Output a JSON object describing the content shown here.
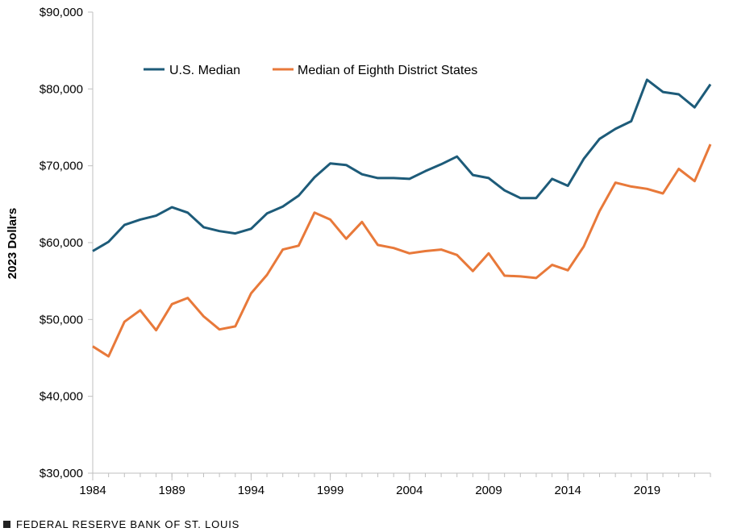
{
  "chart_data": {
    "type": "line",
    "title": "",
    "xlabel": "",
    "ylabel": "2023 Dollars",
    "ylim": [
      30000,
      90000
    ],
    "xlim": [
      1984,
      2023
    ],
    "y_ticks": [
      30000,
      40000,
      50000,
      60000,
      70000,
      80000,
      90000
    ],
    "y_tick_labels": [
      "$30,000",
      "$40,000",
      "$50,000",
      "$60,000",
      "$70,000",
      "$80,000",
      "$90,000"
    ],
    "x_ticks": [
      1984,
      1989,
      1994,
      1999,
      2004,
      2009,
      2014,
      2019
    ],
    "x_tick_labels": [
      "1984",
      "1989",
      "1994",
      "1999",
      "2004",
      "2009",
      "2014",
      "2019"
    ],
    "grid": false,
    "legend_position": "top-left",
    "x": [
      1984,
      1985,
      1986,
      1987,
      1988,
      1989,
      1990,
      1991,
      1992,
      1993,
      1994,
      1995,
      1996,
      1997,
      1998,
      1999,
      2000,
      2001,
      2002,
      2003,
      2004,
      2005,
      2006,
      2007,
      2008,
      2009,
      2010,
      2011,
      2012,
      2013,
      2014,
      2015,
      2016,
      2017,
      2018,
      2019,
      2020,
      2021,
      2022,
      2023
    ],
    "series": [
      {
        "name": "U.S. Median",
        "color": "#1d5b79",
        "values": [
          58900,
          60100,
          62300,
          63000,
          63500,
          64600,
          63900,
          62000,
          61500,
          61200,
          61800,
          63800,
          64700,
          66100,
          68500,
          70300,
          70100,
          68900,
          68400,
          68400,
          68300,
          69300,
          70200,
          71200,
          68800,
          68400,
          66800,
          65800,
          65800,
          68300,
          67400,
          70900,
          73500,
          74800,
          75800,
          81200,
          79600,
          79300,
          77600,
          80600
        ]
      },
      {
        "name": "Median of Eighth District States",
        "color": "#e8793a",
        "values": [
          46500,
          45200,
          49700,
          51200,
          48600,
          52000,
          52800,
          50400,
          48700,
          49100,
          53400,
          55800,
          59100,
          59600,
          63900,
          63000,
          60500,
          62700,
          59700,
          59300,
          58600,
          58900,
          59100,
          58400,
          56300,
          58600,
          55700,
          55600,
          55400,
          57100,
          56400,
          59500,
          64100,
          67800,
          67300,
          67000,
          66400,
          69600,
          68000,
          72800
        ]
      }
    ]
  },
  "footer": {
    "text": "FEDERAL RESERVE BANK OF ST. LOUIS"
  }
}
